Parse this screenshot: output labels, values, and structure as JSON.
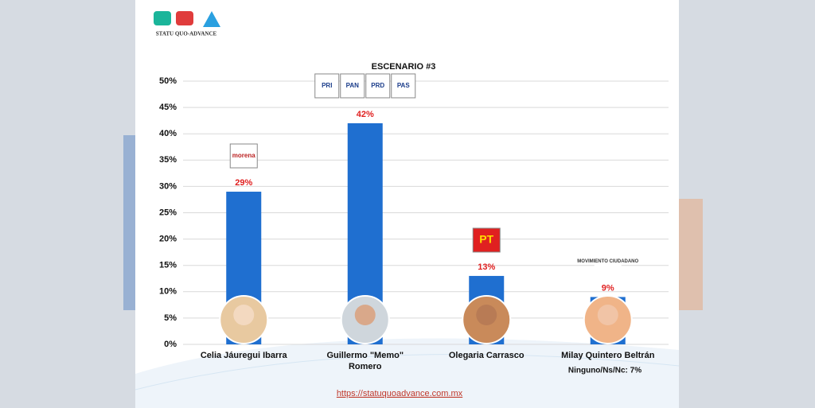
{
  "brand": {
    "name": "STATU QUO-ADVANCE"
  },
  "chart_data": {
    "type": "bar",
    "title": "ESCENARIO #3",
    "categories": [
      "Celia Jáuregui Ibarra",
      "Guillermo \"Memo\" Romero",
      "Olegaria Carrasco",
      "Milay Quintero Beltrán"
    ],
    "values": [
      29,
      42,
      13,
      9
    ],
    "value_labels": [
      "29%",
      "42%",
      "13%",
      "9%"
    ],
    "parties": [
      [
        "morena"
      ],
      [
        "PRI",
        "PAN",
        "PRD",
        "PAS"
      ],
      [
        "PT"
      ],
      [
        "MOVIMIENTO CIUDADANO"
      ]
    ],
    "color": "#1f6fd0",
    "label_color": "#e02020",
    "ylim": [
      0,
      50
    ],
    "yticks": [
      {
        "value": 0,
        "label": "0%"
      },
      {
        "value": 5,
        "label": "5%"
      },
      {
        "value": 10,
        "label": "10%"
      },
      {
        "value": 15,
        "label": "15%"
      },
      {
        "value": 20,
        "label": "20%"
      },
      {
        "value": 25,
        "label": "25%"
      },
      {
        "value": 30,
        "label": "30%"
      },
      {
        "value": 35,
        "label": "35%"
      },
      {
        "value": 40,
        "label": "40%"
      },
      {
        "value": 45,
        "label": "45%"
      },
      {
        "value": 50,
        "label": "50%"
      }
    ],
    "grid": true,
    "note": "Ninguno/Ns/Nc: 7%"
  },
  "footer": {
    "url": "https://statuquoadvance.com.mx"
  }
}
